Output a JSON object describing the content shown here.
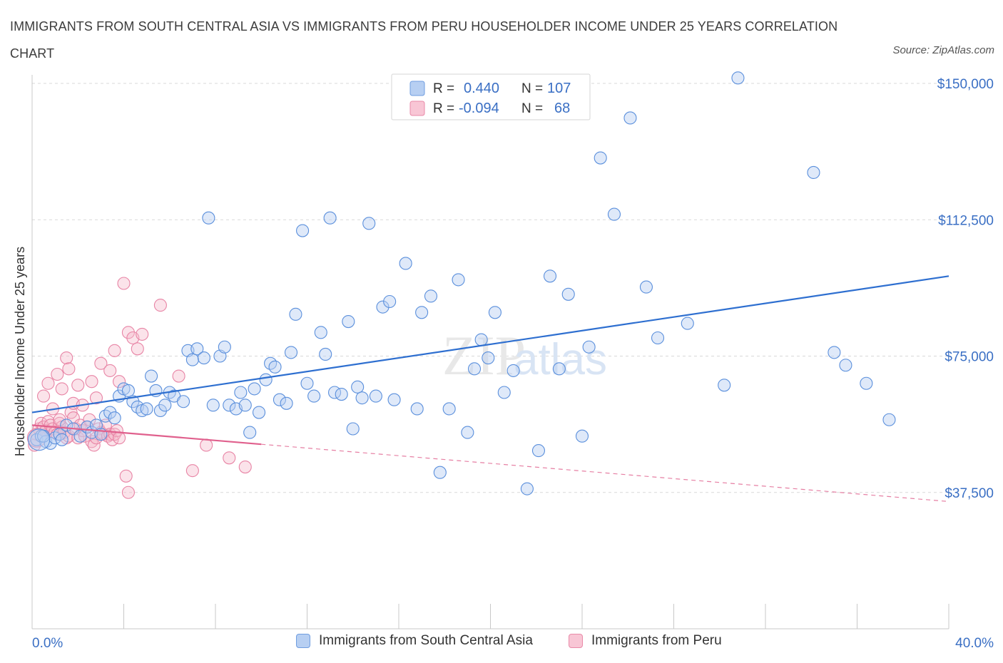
{
  "title": "IMMIGRANTS FROM SOUTH CENTRAL ASIA VS IMMIGRANTS FROM PERU HOUSEHOLDER INCOME UNDER 25 YEARS CORRELATION CHART",
  "source": "Source: ZipAtlas.com",
  "colors": {
    "blue": "#4a86d8",
    "blue_fill": "#b7cff2",
    "pink": "#e06890",
    "pink_fill": "#f5b8cb",
    "axis_text": "#3a6fc4"
  },
  "legend_box": {
    "rows": [
      {
        "r_label": "R =",
        "r_value": "0.440",
        "n_label": "N =",
        "n_value": "107"
      },
      {
        "r_label": "R =",
        "r_value": "-0.094",
        "n_label": "N =",
        "n_value": "68"
      }
    ]
  },
  "bottom_legend": {
    "blue": "Immigrants from South Central Asia",
    "pink": "Immigrants from Peru"
  },
  "watermark": {
    "zip": "ZIP",
    "atlas": "atlas"
  },
  "chart_data": {
    "type": "scatter",
    "xlabel": "",
    "ylabel": "Householder Income Under 25 years",
    "xlim": [
      0,
      40
    ],
    "ylim": [
      0,
      150000
    ],
    "x_tick_labels": [
      "0.0%",
      "40.0%"
    ],
    "y_ticks": [
      37500,
      75000,
      112500,
      150000
    ],
    "y_tick_labels": [
      "$37,500",
      "$75,000",
      "$112,500",
      "$150,000"
    ],
    "grid": true,
    "legend_placement": "top-center",
    "series": [
      {
        "name": "Immigrants from South Central Asia",
        "color": "blue",
        "trend": {
          "x": [
            0,
            40
          ],
          "y": [
            59500,
            97000
          ],
          "dashed_after": null
        },
        "points": [
          [
            0.2,
            52000
          ],
          [
            0.4,
            53000
          ],
          [
            0.6,
            51500
          ],
          [
            0.8,
            51000
          ],
          [
            1.0,
            52500
          ],
          [
            1.2,
            53500
          ],
          [
            1.5,
            56000
          ],
          [
            1.8,
            55000
          ],
          [
            2.1,
            53000
          ],
          [
            2.4,
            55500
          ],
          [
            2.6,
            54000
          ],
          [
            2.8,
            56000
          ],
          [
            3.0,
            53500
          ],
          [
            3.2,
            58500
          ],
          [
            3.4,
            59500
          ],
          [
            3.6,
            58000
          ],
          [
            3.8,
            64000
          ],
          [
            4.0,
            66000
          ],
          [
            4.2,
            65500
          ],
          [
            4.4,
            62500
          ],
          [
            4.6,
            61000
          ],
          [
            4.8,
            60000
          ],
          [
            5.0,
            60500
          ],
          [
            5.2,
            69500
          ],
          [
            5.4,
            65500
          ],
          [
            5.6,
            60000
          ],
          [
            5.8,
            61500
          ],
          [
            6.0,
            65000
          ],
          [
            6.2,
            64000
          ],
          [
            6.6,
            62500
          ],
          [
            6.8,
            76500
          ],
          [
            7.0,
            74000
          ],
          [
            7.2,
            77000
          ],
          [
            7.5,
            74500
          ],
          [
            7.7,
            113000
          ],
          [
            7.9,
            61500
          ],
          [
            8.2,
            75000
          ],
          [
            8.4,
            77500
          ],
          [
            8.6,
            61500
          ],
          [
            8.9,
            60500
          ],
          [
            9.1,
            65000
          ],
          [
            9.3,
            61500
          ],
          [
            9.5,
            54000
          ],
          [
            9.7,
            66000
          ],
          [
            9.9,
            59500
          ],
          [
            10.2,
            68500
          ],
          [
            10.4,
            73000
          ],
          [
            10.6,
            72000
          ],
          [
            10.8,
            63000
          ],
          [
            11.1,
            62000
          ],
          [
            11.3,
            76000
          ],
          [
            11.5,
            86500
          ],
          [
            11.8,
            109500
          ],
          [
            12.0,
            67500
          ],
          [
            12.3,
            64000
          ],
          [
            12.6,
            81500
          ],
          [
            12.8,
            75500
          ],
          [
            13.0,
            113000
          ],
          [
            13.2,
            65000
          ],
          [
            13.5,
            64500
          ],
          [
            13.8,
            84500
          ],
          [
            14.0,
            55000
          ],
          [
            14.2,
            66500
          ],
          [
            14.4,
            63500
          ],
          [
            14.7,
            111500
          ],
          [
            15.0,
            64000
          ],
          [
            15.3,
            88500
          ],
          [
            15.6,
            90000
          ],
          [
            15.8,
            63000
          ],
          [
            16.3,
            100500
          ],
          [
            16.8,
            60500
          ],
          [
            17.0,
            87000
          ],
          [
            17.4,
            91500
          ],
          [
            17.8,
            43000
          ],
          [
            18.2,
            60500
          ],
          [
            18.6,
            96000
          ],
          [
            19.0,
            54000
          ],
          [
            19.3,
            71500
          ],
          [
            19.6,
            79500
          ],
          [
            19.9,
            74500
          ],
          [
            20.2,
            87000
          ],
          [
            20.6,
            65000
          ],
          [
            21.0,
            71000
          ],
          [
            21.6,
            38500
          ],
          [
            22.1,
            49000
          ],
          [
            22.6,
            97000
          ],
          [
            23.0,
            71500
          ],
          [
            23.4,
            92000
          ],
          [
            24.0,
            53000
          ],
          [
            24.3,
            77500
          ],
          [
            24.8,
            129500
          ],
          [
            25.4,
            114000
          ],
          [
            26.1,
            140500
          ],
          [
            26.8,
            94000
          ],
          [
            27.3,
            80000
          ],
          [
            28.6,
            84000
          ],
          [
            30.2,
            67000
          ],
          [
            30.8,
            151500
          ],
          [
            34.1,
            125500
          ],
          [
            35.0,
            76000
          ],
          [
            35.5,
            72500
          ],
          [
            36.4,
            67500
          ],
          [
            37.4,
            57500
          ],
          [
            0.5,
            53000
          ],
          [
            1.3,
            52000
          ]
        ]
      },
      {
        "name": "Immigrants from Peru",
        "color": "pink",
        "trend": {
          "x": [
            0,
            40
          ],
          "y": [
            56000,
            35000
          ],
          "dashed_after": 10
        },
        "points": [
          [
            0.1,
            50500
          ],
          [
            0.2,
            53500
          ],
          [
            0.3,
            55000
          ],
          [
            0.4,
            56500
          ],
          [
            0.5,
            55500
          ],
          [
            0.6,
            54500
          ],
          [
            0.7,
            57000
          ],
          [
            0.8,
            56000
          ],
          [
            0.9,
            55000
          ],
          [
            1.0,
            54000
          ],
          [
            1.1,
            53500
          ],
          [
            1.2,
            56500
          ],
          [
            1.3,
            55500
          ],
          [
            1.4,
            54000
          ],
          [
            1.5,
            52500
          ],
          [
            1.6,
            53000
          ],
          [
            1.7,
            59500
          ],
          [
            1.8,
            58000
          ],
          [
            1.9,
            55000
          ],
          [
            2.0,
            52500
          ],
          [
            2.1,
            56000
          ],
          [
            2.2,
            54500
          ],
          [
            2.3,
            53000
          ],
          [
            2.4,
            55500
          ],
          [
            2.5,
            57500
          ],
          [
            2.6,
            51500
          ],
          [
            2.7,
            50500
          ],
          [
            2.8,
            52500
          ],
          [
            2.9,
            55000
          ],
          [
            3.0,
            54000
          ],
          [
            3.1,
            53500
          ],
          [
            3.2,
            56000
          ],
          [
            3.3,
            53000
          ],
          [
            3.4,
            53500
          ],
          [
            3.5,
            52000
          ],
          [
            3.6,
            53500
          ],
          [
            3.7,
            54500
          ],
          [
            3.8,
            52500
          ],
          [
            0.5,
            64000
          ],
          [
            0.7,
            67500
          ],
          [
            0.9,
            60500
          ],
          [
            1.1,
            70000
          ],
          [
            1.2,
            57500
          ],
          [
            1.3,
            66000
          ],
          [
            1.5,
            74500
          ],
          [
            1.6,
            71500
          ],
          [
            1.8,
            62000
          ],
          [
            2.0,
            67000
          ],
          [
            2.2,
            61500
          ],
          [
            2.6,
            68000
          ],
          [
            2.8,
            63500
          ],
          [
            3.0,
            73000
          ],
          [
            3.4,
            71000
          ],
          [
            3.6,
            76500
          ],
          [
            3.8,
            68000
          ],
          [
            4.0,
            95000
          ],
          [
            4.2,
            81500
          ],
          [
            4.4,
            80000
          ],
          [
            4.6,
            77000
          ],
          [
            4.8,
            81000
          ],
          [
            5.6,
            89000
          ],
          [
            6.4,
            69500
          ],
          [
            7.0,
            43500
          ],
          [
            7.6,
            50500
          ],
          [
            8.6,
            47000
          ],
          [
            9.3,
            44500
          ],
          [
            4.1,
            42000
          ],
          [
            4.2,
            37500
          ]
        ]
      }
    ]
  }
}
